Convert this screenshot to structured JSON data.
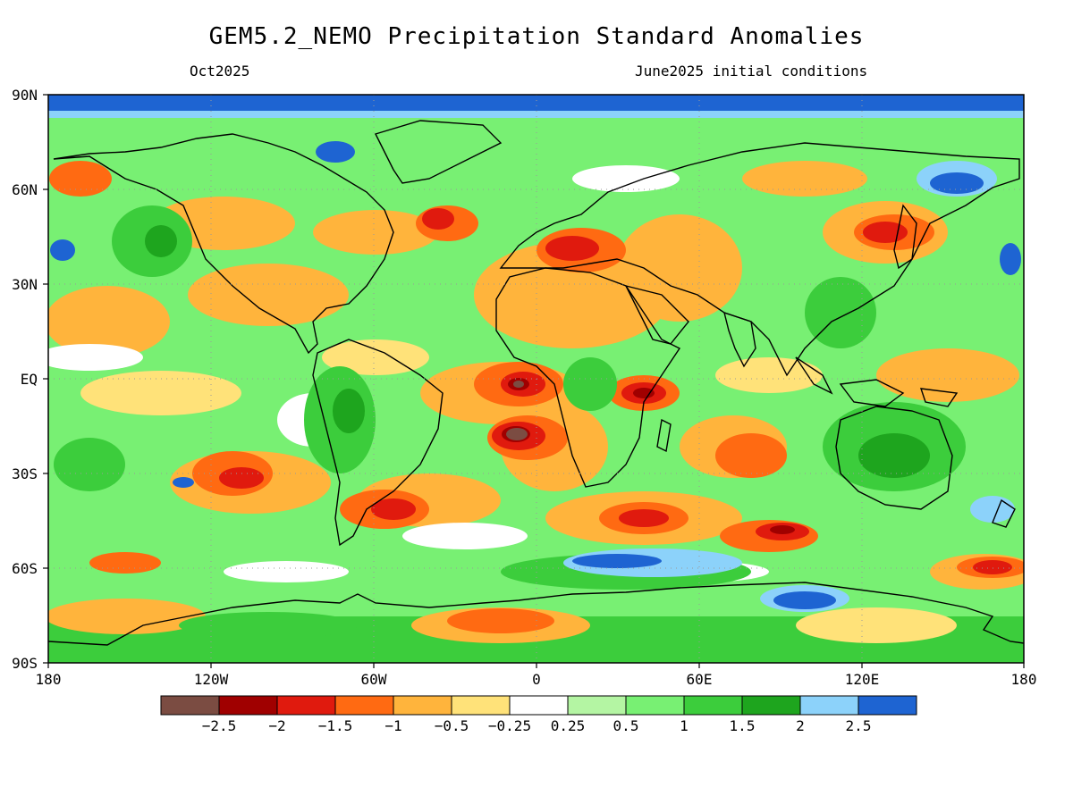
{
  "title": "GEM5.2_NEMO Precipitation Standard Anomalies",
  "month": "Oct2025",
  "init": "June2025 initial conditions",
  "lat_labels": [
    "90N",
    "60N",
    "30N",
    "EQ",
    "30S",
    "60S",
    "90S"
  ],
  "lon_labels": [
    "180",
    "120W",
    "60W",
    "0",
    "60E",
    "120E",
    "180"
  ],
  "legend": {
    "colors": [
      "#7b4c42",
      "#a00000",
      "#e01a0e",
      "#ff6a12",
      "#ffb43c",
      "#ffe279",
      "#ffffff",
      "#b4f5a3",
      "#78f073",
      "#3ccd3c",
      "#1ea51e",
      "#8cd2fa",
      "#1e64d2"
    ],
    "labels": [
      "-2.5",
      "-2",
      "-1.5",
      "-1",
      "-0.5",
      "-0.25",
      "0.25",
      "0.5",
      "1",
      "1.5",
      "2",
      "2.5"
    ]
  }
}
